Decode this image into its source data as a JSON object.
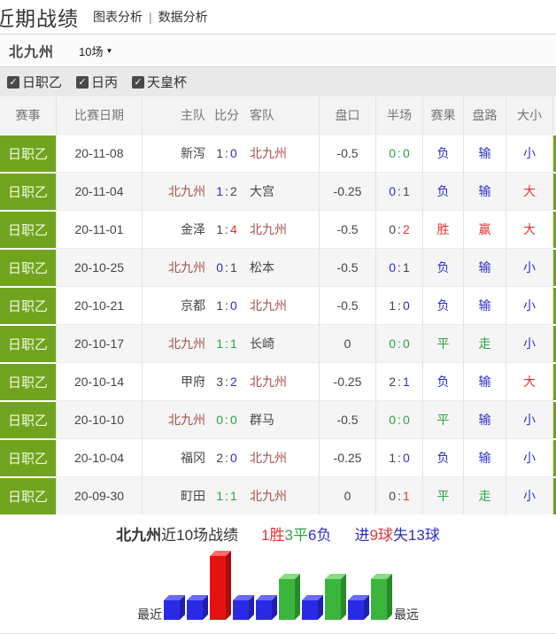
{
  "header": {
    "title": "近期战绩",
    "links": [
      "图表分析",
      "数据分析"
    ],
    "divider": "|"
  },
  "selector": {
    "team": "北九州",
    "range": "10场",
    "caret": "▼"
  },
  "filters": {
    "check_glyph": "✓",
    "items": [
      {
        "label": "日职乙",
        "checked": true
      },
      {
        "label": "日丙",
        "checked": true
      },
      {
        "label": "天皇杯",
        "checked": true
      }
    ]
  },
  "palette": {
    "dark": "c-dark",
    "blue": "c-blue",
    "red": "c-red",
    "green": "c-green"
  },
  "table": {
    "columns": [
      "赛事",
      "比赛日期",
      "主队",
      "比分",
      "客队",
      "盘口",
      "半场",
      "赛果",
      "盘路",
      "大小"
    ],
    "rows": [
      {
        "league": "日职乙",
        "date": "20-11-08",
        "home": "新泻",
        "home_is_team": false,
        "score": {
          "h": "1",
          "hc": "dark",
          "a": "0",
          "ac": "blue",
          "cc": "dark"
        },
        "away": "北九州",
        "away_is_team": true,
        "handicap": "-0.5",
        "half": {
          "h": "0",
          "hc": "green",
          "a": "0",
          "ac": "green",
          "cc": "green"
        },
        "result": {
          "t": "负",
          "c": "blue"
        },
        "road": {
          "t": "输",
          "c": "blue"
        },
        "ou": {
          "t": "小",
          "c": "blue"
        }
      },
      {
        "league": "日职乙",
        "date": "20-11-04",
        "home": "北九州",
        "home_is_team": true,
        "score": {
          "h": "1",
          "hc": "blue",
          "a": "2",
          "ac": "dark",
          "cc": "dark"
        },
        "away": "大宫",
        "away_is_team": false,
        "handicap": "-0.25",
        "half": {
          "h": "0",
          "hc": "blue",
          "a": "1",
          "ac": "dark",
          "cc": "dark"
        },
        "result": {
          "t": "负",
          "c": "blue"
        },
        "road": {
          "t": "输",
          "c": "blue"
        },
        "ou": {
          "t": "大",
          "c": "red"
        }
      },
      {
        "league": "日职乙",
        "date": "20-11-01",
        "home": "金泽",
        "home_is_team": false,
        "score": {
          "h": "1",
          "hc": "dark",
          "a": "4",
          "ac": "red",
          "cc": "dark"
        },
        "away": "北九州",
        "away_is_team": true,
        "handicap": "-0.5",
        "half": {
          "h": "0",
          "hc": "dark",
          "a": "2",
          "ac": "red",
          "cc": "dark"
        },
        "result": {
          "t": "胜",
          "c": "red"
        },
        "road": {
          "t": "赢",
          "c": "red"
        },
        "ou": {
          "t": "大",
          "c": "red"
        }
      },
      {
        "league": "日职乙",
        "date": "20-10-25",
        "home": "北九州",
        "home_is_team": true,
        "score": {
          "h": "0",
          "hc": "blue",
          "a": "1",
          "ac": "dark",
          "cc": "dark"
        },
        "away": "松本",
        "away_is_team": false,
        "handicap": "-0.5",
        "half": {
          "h": "0",
          "hc": "blue",
          "a": "1",
          "ac": "dark",
          "cc": "dark"
        },
        "result": {
          "t": "负",
          "c": "blue"
        },
        "road": {
          "t": "输",
          "c": "blue"
        },
        "ou": {
          "t": "小",
          "c": "blue"
        }
      },
      {
        "league": "日职乙",
        "date": "20-10-21",
        "home": "京都",
        "home_is_team": false,
        "score": {
          "h": "1",
          "hc": "dark",
          "a": "0",
          "ac": "blue",
          "cc": "dark"
        },
        "away": "北九州",
        "away_is_team": true,
        "handicap": "-0.5",
        "half": {
          "h": "1",
          "hc": "dark",
          "a": "0",
          "ac": "blue",
          "cc": "dark"
        },
        "result": {
          "t": "负",
          "c": "blue"
        },
        "road": {
          "t": "输",
          "c": "blue"
        },
        "ou": {
          "t": "小",
          "c": "blue"
        }
      },
      {
        "league": "日职乙",
        "date": "20-10-17",
        "home": "北九州",
        "home_is_team": true,
        "score": {
          "h": "1",
          "hc": "green",
          "a": "1",
          "ac": "green",
          "cc": "green"
        },
        "away": "长崎",
        "away_is_team": false,
        "handicap": "0",
        "half": {
          "h": "0",
          "hc": "green",
          "a": "0",
          "ac": "green",
          "cc": "green"
        },
        "result": {
          "t": "平",
          "c": "green"
        },
        "road": {
          "t": "走",
          "c": "green"
        },
        "ou": {
          "t": "小",
          "c": "blue"
        }
      },
      {
        "league": "日职乙",
        "date": "20-10-14",
        "home": "甲府",
        "home_is_team": false,
        "score": {
          "h": "3",
          "hc": "dark",
          "a": "2",
          "ac": "blue",
          "cc": "dark"
        },
        "away": "北九州",
        "away_is_team": true,
        "handicap": "-0.25",
        "half": {
          "h": "2",
          "hc": "dark",
          "a": "1",
          "ac": "blue",
          "cc": "dark"
        },
        "result": {
          "t": "负",
          "c": "blue"
        },
        "road": {
          "t": "输",
          "c": "blue"
        },
        "ou": {
          "t": "大",
          "c": "red"
        }
      },
      {
        "league": "日职乙",
        "date": "20-10-10",
        "home": "北九州",
        "home_is_team": true,
        "score": {
          "h": "0",
          "hc": "green",
          "a": "0",
          "ac": "green",
          "cc": "green"
        },
        "away": "群马",
        "away_is_team": false,
        "handicap": "-0.5",
        "half": {
          "h": "0",
          "hc": "green",
          "a": "0",
          "ac": "green",
          "cc": "green"
        },
        "result": {
          "t": "平",
          "c": "green"
        },
        "road": {
          "t": "输",
          "c": "blue"
        },
        "ou": {
          "t": "小",
          "c": "blue"
        }
      },
      {
        "league": "日职乙",
        "date": "20-10-04",
        "home": "福冈",
        "home_is_team": false,
        "score": {
          "h": "2",
          "hc": "dark",
          "a": "0",
          "ac": "blue",
          "cc": "dark"
        },
        "away": "北九州",
        "away_is_team": true,
        "handicap": "-0.25",
        "half": {
          "h": "1",
          "hc": "dark",
          "a": "0",
          "ac": "blue",
          "cc": "dark"
        },
        "result": {
          "t": "负",
          "c": "blue"
        },
        "road": {
          "t": "输",
          "c": "blue"
        },
        "ou": {
          "t": "小",
          "c": "blue"
        }
      },
      {
        "league": "日职乙",
        "date": "20-09-30",
        "home": "町田",
        "home_is_team": false,
        "score": {
          "h": "1",
          "hc": "green",
          "a": "1",
          "ac": "green",
          "cc": "green"
        },
        "away": "北九州",
        "away_is_team": true,
        "handicap": "0",
        "half": {
          "h": "0",
          "hc": "dark",
          "a": "1",
          "ac": "red",
          "cc": "dark"
        },
        "result": {
          "t": "平",
          "c": "green"
        },
        "road": {
          "t": "走",
          "c": "green"
        },
        "ou": {
          "t": "小",
          "c": "blue"
        }
      }
    ]
  },
  "summary": {
    "parts": [
      {
        "text": "北九州",
        "cls": "b",
        "color": "#333333"
      },
      {
        "text": "近10场战绩",
        "color": "#333333"
      },
      {
        "text": "1胜",
        "color": "#e43434",
        "gap": true
      },
      {
        "text": "3平",
        "color": "#2ea344"
      },
      {
        "text": "6负",
        "color": "#2d2fcf"
      },
      {
        "text": "进",
        "color": "#2d2fcf",
        "gap": true
      },
      {
        "text": "9球",
        "color": "#e43434"
      },
      {
        "text": "失13球",
        "color": "#2d2fcf"
      }
    ]
  },
  "chart_data": {
    "type": "bar",
    "title": "北九州近10场战绩 (最近→最远)",
    "categories": [
      "20-11-08",
      "20-11-04",
      "20-11-01",
      "20-10-25",
      "20-10-21",
      "20-10-17",
      "20-10-14",
      "20-10-10",
      "20-10-04",
      "20-09-30"
    ],
    "series": [
      {
        "name": "赛果",
        "values": [
          "负",
          "负",
          "胜",
          "负",
          "负",
          "平",
          "负",
          "平",
          "负",
          "平"
        ]
      }
    ],
    "left_label": "最近",
    "right_label": "最远",
    "bar_heights": {
      "胜": 72,
      "平": 46,
      "负": 22
    },
    "bar_colors": {
      "胜": {
        "front": "#e51212",
        "top": "#ff6a6a",
        "side": "#a90d0d"
      },
      "平": {
        "front": "#3cb53c",
        "top": "#86dd86",
        "side": "#2a8a2a"
      },
      "负": {
        "front": "#2a2ae6",
        "top": "#6b6bff",
        "side": "#1f1fae"
      }
    },
    "legend_position": "none",
    "grid": false
  }
}
